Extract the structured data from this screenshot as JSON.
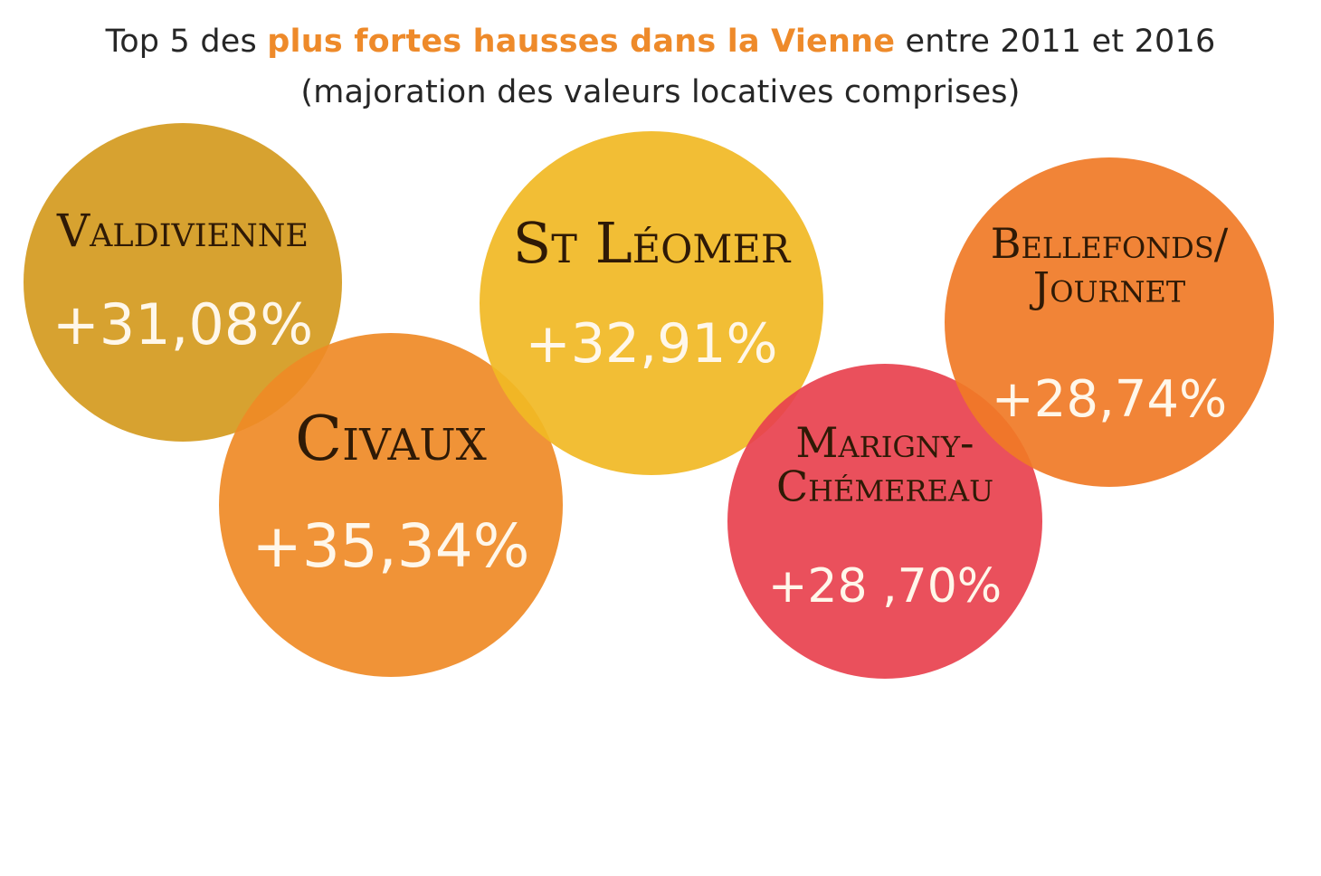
{
  "header": {
    "title_prefix": "Top 5 des ",
    "title_highlight": "plus fortes hausses dans la Vienne",
    "title_suffix": " entre 2011 et 2016",
    "subtitle": "(majoration des valeurs locatives comprises)"
  },
  "colors": {
    "highlight": "#ee8a2a",
    "text": "#262626"
  },
  "chart_data": {
    "type": "bubble",
    "unit": "%",
    "points": [
      {
        "label_lines": [
          "Valdivienne"
        ],
        "value": 31.08,
        "value_label": "+31,08%",
        "color": "#d49a1e"
      },
      {
        "label_lines": [
          "Civaux"
        ],
        "value": 35.34,
        "value_label": "+35,34%",
        "color": "#ef8a26"
      },
      {
        "label_lines": [
          "St Léomer"
        ],
        "value": 32.91,
        "value_label": "+32,91%",
        "color": "#f1b824"
      },
      {
        "label_lines": [
          "Marigny-",
          "Chémereau"
        ],
        "value": 28.7,
        "value_label": "+28 ,70%",
        "color": "#e8414e"
      },
      {
        "label_lines": [
          "Bellefonds/",
          "Journet"
        ],
        "value": 28.74,
        "value_label": "+28,74%",
        "color": "#f07a26"
      }
    ]
  }
}
